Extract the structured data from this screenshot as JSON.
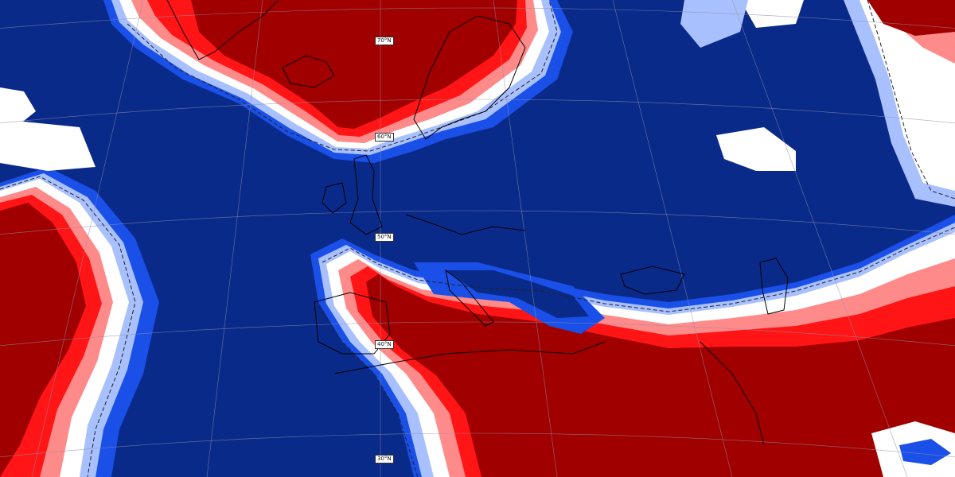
{
  "map": {
    "colors": {
      "strong_positive": "#a10000",
      "positive": "#ff1515",
      "weak_positive": "#ff8a8a",
      "neutral": "#ffffff",
      "weak_negative": "#a9c0ff",
      "negative": "#1a50e8",
      "strong_negative": "#0a2a8a",
      "coastline": "#000000",
      "zero_contour": "#222222"
    },
    "latitude_labels": [
      "70°N",
      "60°N",
      "50°N",
      "40°N",
      "30°N"
    ]
  }
}
